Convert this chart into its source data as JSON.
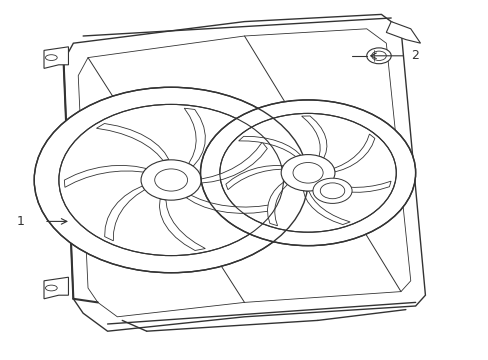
{
  "bg_color": "#ffffff",
  "line_color": "#333333",
  "line_width": 0.8,
  "title": "",
  "label1_text": "1",
  "label2_text": "2",
  "figsize": [
    4.89,
    3.6
  ],
  "dpi": 100
}
